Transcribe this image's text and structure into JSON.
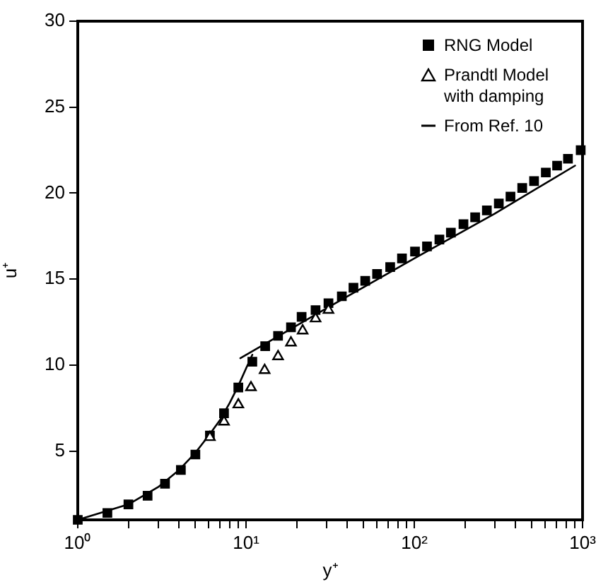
{
  "chart_data": {
    "type": "scatter",
    "xlabel": "y⁺",
    "ylabel": "u⁺",
    "log": "x",
    "xlim": [
      1,
      1000
    ],
    "ylim": [
      1,
      30
    ],
    "xticks": [
      {
        "value": 1,
        "label": "10⁰"
      },
      {
        "value": 2,
        "label": null
      },
      {
        "value": 3,
        "label": null
      },
      {
        "value": 4,
        "label": null
      },
      {
        "value": 5,
        "label": null
      },
      {
        "value": 6,
        "label": null
      },
      {
        "value": 7,
        "label": null
      },
      {
        "value": 8,
        "label": null
      },
      {
        "value": 9,
        "label": null
      },
      {
        "value": 10,
        "label": "10¹"
      },
      {
        "value": 20,
        "label": null
      },
      {
        "value": 30,
        "label": null
      },
      {
        "value": 40,
        "label": null
      },
      {
        "value": 50,
        "label": null
      },
      {
        "value": 60,
        "label": null
      },
      {
        "value": 70,
        "label": null
      },
      {
        "value": 80,
        "label": null
      },
      {
        "value": 90,
        "label": null
      },
      {
        "value": 100,
        "label": "10²"
      },
      {
        "value": 200,
        "label": null
      },
      {
        "value": 300,
        "label": null
      },
      {
        "value": 400,
        "label": null
      },
      {
        "value": 500,
        "label": null
      },
      {
        "value": 600,
        "label": null
      },
      {
        "value": 700,
        "label": null
      },
      {
        "value": 800,
        "label": null
      },
      {
        "value": 900,
        "label": null
      },
      {
        "value": 1000,
        "label": "10³"
      }
    ],
    "yticks": [
      5,
      10,
      15,
      20,
      25,
      30
    ],
    "grid": false,
    "legend": "top right",
    "series": [
      {
        "name": "RNG Model",
        "color": "#000000",
        "marker": "square",
        "x": [
          1,
          1.5,
          2,
          2.6,
          3.3,
          4.1,
          5,
          6.1,
          7.4,
          9,
          10.9,
          13,
          15.5,
          18.5,
          21.4,
          25.9,
          30.9,
          37.1,
          43.5,
          51.1,
          60.1,
          71.9,
          84.5,
          101,
          119,
          141,
          165,
          196,
          230,
          270,
          318,
          373,
          438,
          515,
          605,
          706,
          819,
          975
        ],
        "values": [
          1,
          1.4,
          1.9,
          2.4,
          3.1,
          3.9,
          4.8,
          5.9,
          7.2,
          8.7,
          10.2,
          11.1,
          11.7,
          12.2,
          12.8,
          13.2,
          13.6,
          14,
          14.5,
          14.9,
          15.3,
          15.7,
          16.2,
          16.6,
          16.9,
          17.3,
          17.7,
          18.2,
          18.6,
          19,
          19.4,
          19.8,
          20.3,
          20.7,
          21.2,
          21.6,
          22,
          22.5
        ]
      },
      {
        "name": "Prandtl Model with damping",
        "color": "#000000",
        "marker": "triangle",
        "x": [
          6.1,
          7.4,
          9,
          10.7,
          12.9,
          15.5,
          18.5,
          21.7,
          25.9,
          30.9
        ],
        "values": [
          5.8,
          6.7,
          7.7,
          8.7,
          9.7,
          10.5,
          11.3,
          12,
          12.7,
          13.2
        ]
      },
      {
        "name": "From Ref. 10",
        "type": "line",
        "color": "#000000",
        "marker": "none",
        "x": [
          1,
          2,
          3,
          4,
          5,
          6,
          7,
          8,
          9,
          10,
          10.9
        ],
        "values": [
          1,
          1.9,
          2.9,
          3.9,
          4.9,
          5.9,
          6.8,
          7.8,
          8.8,
          9.8,
          10.6
        ]
      },
      {
        "type": "line",
        "color": "#000000",
        "marker": "none",
        "x": [
          9.25,
          30,
          100,
          300,
          903
        ],
        "values": [
          10.4,
          13.3,
          16.2,
          18.8,
          21.6
        ]
      }
    ]
  }
}
